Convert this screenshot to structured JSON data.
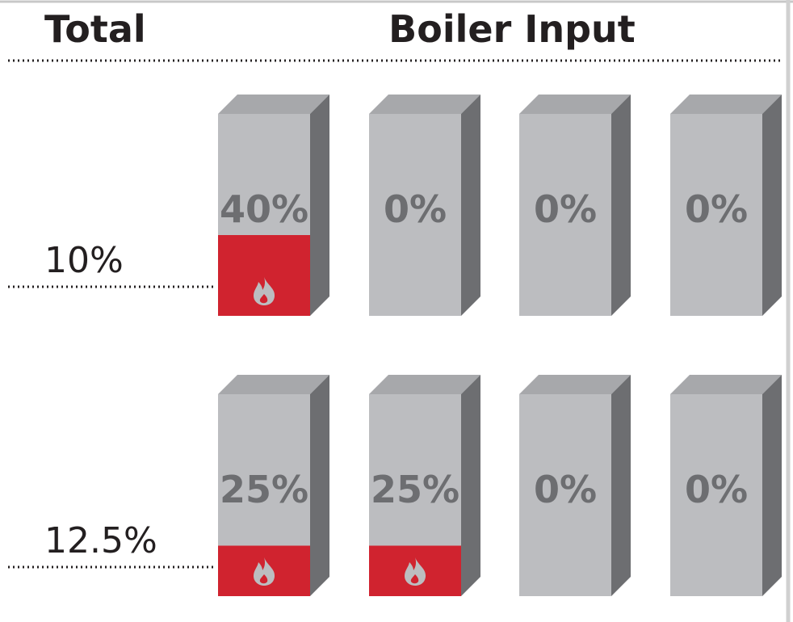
{
  "header": {
    "total": "Total",
    "boiler_input": "Boiler Input"
  },
  "rows": [
    {
      "total": "10%",
      "boilers": [
        {
          "label": "40%",
          "load": 40
        },
        {
          "label": "0%",
          "load": 0
        },
        {
          "label": "0%",
          "load": 0
        },
        {
          "label": "0%",
          "load": 0
        }
      ]
    },
    {
      "total": "12.5%",
      "boilers": [
        {
          "label": "25%",
          "load": 25
        },
        {
          "label": "25%",
          "load": 25
        },
        {
          "label": "0%",
          "load": 0
        },
        {
          "label": "0%",
          "load": 0
        }
      ]
    }
  ]
}
